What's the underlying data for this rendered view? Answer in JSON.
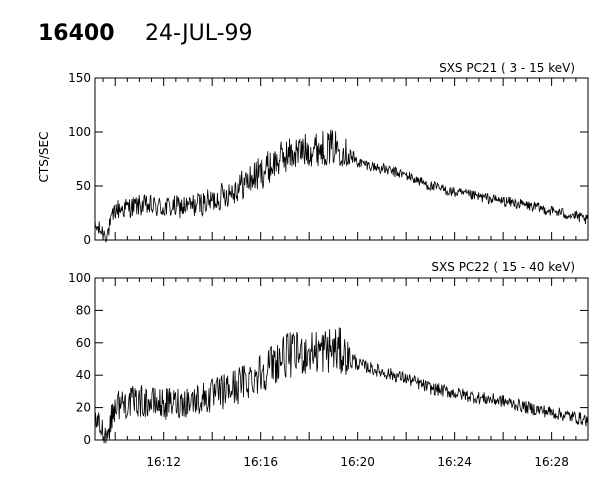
{
  "header": {
    "event_number": "16400",
    "date": "24-JUL-99"
  },
  "chart_data": [
    {
      "type": "line",
      "title": "SXS PC21  (  3 - 15 keV)",
      "ylabel": "CTS/SEC",
      "xlabel": "",
      "xlim": [
        "16:09:10",
        "16:29:30"
      ],
      "ylim": [
        0,
        150
      ],
      "yticks": [
        0,
        50,
        100,
        150
      ],
      "xtick_labels": [],
      "grid": false,
      "series": [
        {
          "x": [
            "16:09:10",
            "16:09:40",
            "16:10:00",
            "16:11:00",
            "16:12:00",
            "16:13:00",
            "16:14:00",
            "16:15:00",
            "16:16:00",
            "16:17:00",
            "16:18:00",
            "16:19:00",
            "16:19:20",
            "16:20:00",
            "16:21:00",
            "16:22:00",
            "16:23:00",
            "16:24:00",
            "16:25:00",
            "16:26:00",
            "16:27:00",
            "16:28:00",
            "16:29:00",
            "16:29:30"
          ],
          "values": [
            12,
            5,
            28,
            32,
            30,
            31,
            36,
            48,
            62,
            78,
            84,
            86,
            85,
            72,
            66,
            60,
            50,
            44,
            40,
            36,
            32,
            27,
            22,
            18
          ],
          "noise": [
            8,
            8,
            10,
            10,
            11,
            11,
            12,
            14,
            16,
            16,
            16,
            17,
            17,
            5,
            5,
            5,
            5,
            5,
            5,
            5,
            5,
            5,
            5,
            5
          ]
        }
      ]
    },
    {
      "type": "line",
      "title": "SXS PC22  ( 15 - 40 keV)",
      "ylabel": "",
      "xlabel": "",
      "xlim": [
        "16:09:10",
        "16:29:30"
      ],
      "ylim": [
        0,
        100
      ],
      "yticks": [
        0,
        20,
        40,
        60,
        80,
        100
      ],
      "xtick_labels": [
        "16:12",
        "16:16",
        "16:20",
        "16:24",
        "16:28"
      ],
      "grid": false,
      "series": [
        {
          "x": [
            "16:09:10",
            "16:09:40",
            "16:10:00",
            "16:11:00",
            "16:12:00",
            "16:13:00",
            "16:14:00",
            "16:15:00",
            "16:16:00",
            "16:17:00",
            "16:18:00",
            "16:19:00",
            "16:19:20",
            "16:20:00",
            "16:21:00",
            "16:22:00",
            "16:23:00",
            "16:24:00",
            "16:25:00",
            "16:26:00",
            "16:27:00",
            "16:28:00",
            "16:29:00",
            "16:29:30"
          ],
          "values": [
            12,
            3,
            22,
            24,
            22,
            24,
            27,
            33,
            42,
            52,
            54,
            56,
            54,
            47,
            42,
            38,
            32,
            29,
            26,
            24,
            20,
            17,
            14,
            12
          ],
          "noise": [
            8,
            8,
            10,
            10,
            10,
            10,
            11,
            12,
            13,
            14,
            14,
            15,
            15,
            4,
            4,
            4,
            4,
            4,
            4,
            4,
            4,
            4,
            4,
            4
          ]
        }
      ]
    }
  ]
}
